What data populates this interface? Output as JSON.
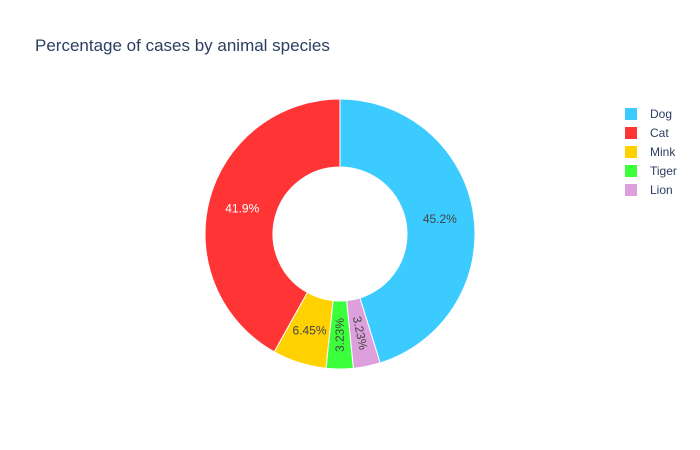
{
  "chart_data": {
    "type": "pie",
    "hole": true,
    "title": "Percentage of cases by animal species",
    "legend_position": "right",
    "categories": [
      "Dog",
      "Cat",
      "Mink",
      "Tiger",
      "Lion"
    ],
    "values": [
      45.2,
      41.9,
      6.45,
      3.23,
      3.23
    ],
    "labels": [
      "45.2%",
      "41.9%",
      "6.45%",
      "3.23%",
      "3.23%"
    ],
    "colors": [
      "#3ccbff",
      "#ff3434",
      "#ffd100",
      "#3cff3c",
      "#dda0dd"
    ],
    "slice_order_clockwise_from_top": [
      "Dog",
      "Lion",
      "Tiger",
      "Mink",
      "Cat"
    ],
    "label_colors": [
      "#444444",
      "#ffffff",
      "#444444",
      "#444444",
      "#444444"
    ]
  }
}
